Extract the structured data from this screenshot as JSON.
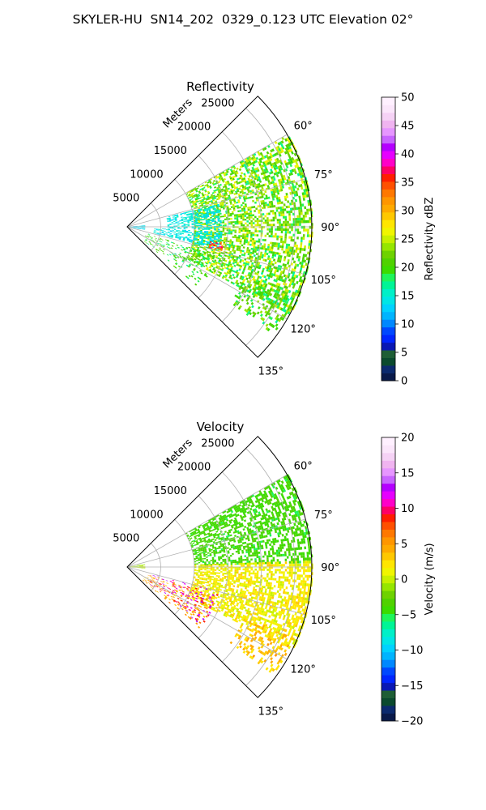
{
  "figure_title": "SKYLER-HU  SN14_202  0329_0.123 UTC Elevation 02°",
  "chart_data": [
    {
      "type": "heatmap",
      "projection": "polar sector (PPI)",
      "title": "Reflectivity",
      "field": "reflectivity",
      "radial_label": "Meters",
      "radial_ticks": [
        "5000",
        "10000",
        "15000",
        "20000",
        "25000"
      ],
      "radial_values": [
        5000,
        10000,
        15000,
        20000,
        25000
      ],
      "r_max": 27500,
      "angle_ticks": [
        "60°",
        "75°",
        "90°",
        "105°",
        "120°",
        "135°"
      ],
      "angle_values": [
        60,
        75,
        90,
        105,
        120,
        135
      ],
      "theta_range": [
        45,
        135
      ],
      "grid": true,
      "colorbar": {
        "label": "Reflectivity dBZ",
        "range": [
          0,
          50
        ],
        "ticks": [
          "0",
          "5",
          "10",
          "15",
          "20",
          "25",
          "30",
          "35",
          "40",
          "45",
          "50"
        ],
        "tick_values": [
          0,
          5,
          10,
          15,
          20,
          25,
          30,
          35,
          40,
          45,
          50
        ],
        "colormap": [
          "#0a1a4a",
          "#0c2a6e",
          "#0b4a2e",
          "#1e5e35",
          "#0a18b4",
          "#0026ff",
          "#0048ff",
          "#0088ff",
          "#00b4ff",
          "#00d2ff",
          "#00e6e6",
          "#00f0c8",
          "#00f596",
          "#1ef55a",
          "#3cdc00",
          "#50d200",
          "#6ed200",
          "#96e600",
          "#c8f000",
          "#f0f500",
          "#ffe600",
          "#ffc800",
          "#ffaa00",
          "#ff9600",
          "#ff7800",
          "#ff5000",
          "#ff1e00",
          "#ff0064",
          "#ff00c8",
          "#e600ff",
          "#b400ff",
          "#c864ff",
          "#e696ff",
          "#f0b4f0",
          "#f5d2f5",
          "#fbe6fb",
          "#fff0ff"
        ]
      },
      "echo_regions": [
        {
          "theta": [
            60,
            118
          ],
          "r": [
            10000,
            27500
          ],
          "value_range": [
            17,
            27
          ],
          "density": 0.55
        },
        {
          "theta": [
            76,
            92
          ],
          "r": [
            6000,
            14000
          ],
          "value_range": [
            13,
            16
          ],
          "density": 0.5
        },
        {
          "theta": [
            93,
            103
          ],
          "r": [
            4000,
            14000
          ],
          "value_range": [
            13,
            16
          ],
          "density": 0.45
        },
        {
          "theta": [
            85,
            100
          ],
          "r": [
            300,
            2500
          ],
          "value_range": [
            12,
            15
          ],
          "density": 0.75
        },
        {
          "theta": [
            108,
            130
          ],
          "r": [
            3000,
            14000
          ],
          "value_range": [
            17,
            22
          ],
          "density": 0.2
        },
        {
          "theta": [
            113,
            126
          ],
          "r": [
            19000,
            27000
          ],
          "value_range": [
            17,
            24
          ],
          "density": 0.35
        },
        {
          "theta": [
            99,
            104
          ],
          "r": [
            12500,
            14500
          ],
          "value_range": [
            30,
            40
          ],
          "density": 0.5
        }
      ]
    },
    {
      "type": "heatmap",
      "projection": "polar sector (PPI)",
      "title": "Velocity",
      "field": "velocity",
      "radial_label": "Meters",
      "radial_ticks": [
        "5000",
        "10000",
        "15000",
        "20000",
        "25000"
      ],
      "radial_values": [
        5000,
        10000,
        15000,
        20000,
        25000
      ],
      "r_max": 27500,
      "angle_ticks": [
        "60°",
        "75°",
        "90°",
        "105°",
        "120°",
        "135°"
      ],
      "angle_values": [
        60,
        75,
        90,
        105,
        120,
        135
      ],
      "theta_range": [
        45,
        135
      ],
      "grid": true,
      "colorbar": {
        "label": "Velocity (m/s)",
        "range": [
          -20,
          20
        ],
        "ticks": [
          "−20",
          "−15",
          "−10",
          "−5",
          "0",
          "5",
          "10",
          "15",
          "20"
        ],
        "tick_values": [
          -20,
          -15,
          -10,
          -5,
          0,
          5,
          10,
          15,
          20
        ],
        "colormap": [
          "#0a1a4a",
          "#0c2a6e",
          "#0b4a2e",
          "#1e5e35",
          "#0a18b4",
          "#0026ff",
          "#0048ff",
          "#0088ff",
          "#00b4ff",
          "#00d2ff",
          "#00e6e6",
          "#00f0c8",
          "#00f596",
          "#1ef55a",
          "#3cdc00",
          "#50d200",
          "#6ed200",
          "#96e600",
          "#c8f000",
          "#f0f500",
          "#ffe600",
          "#ffc800",
          "#ffaa00",
          "#ff9600",
          "#ff7800",
          "#ff5000",
          "#ff1e00",
          "#ff0064",
          "#ff00c8",
          "#e600ff",
          "#b400ff",
          "#c864ff",
          "#e696ff",
          "#f0b4f0",
          "#f5d2f5",
          "#fbe6fb",
          "#fff0ff"
        ]
      },
      "echo_regions": [
        {
          "theta": [
            60,
            88
          ],
          "r": [
            10000,
            27500
          ],
          "value_range": [
            -5,
            -3
          ],
          "density": 0.55
        },
        {
          "theta": [
            88,
            116
          ],
          "r": [
            10000,
            27500
          ],
          "value_range": [
            0,
            3
          ],
          "density": 0.6
        },
        {
          "theta": [
            80,
            95
          ],
          "r": [
            300,
            2500
          ],
          "value_range": [
            -2,
            1
          ],
          "density": 0.75
        },
        {
          "theta": [
            108,
            130
          ],
          "r": [
            3000,
            14000
          ],
          "value_range": [
            3,
            7
          ],
          "density": 0.2
        },
        {
          "theta": [
            113,
            126
          ],
          "r": [
            19000,
            27000
          ],
          "value_range": [
            2,
            5
          ],
          "density": 0.35
        },
        {
          "theta": [
            105,
            128
          ],
          "r": [
            4000,
            14000
          ],
          "value_range": [
            8,
            14
          ],
          "density": 0.12
        }
      ]
    }
  ]
}
